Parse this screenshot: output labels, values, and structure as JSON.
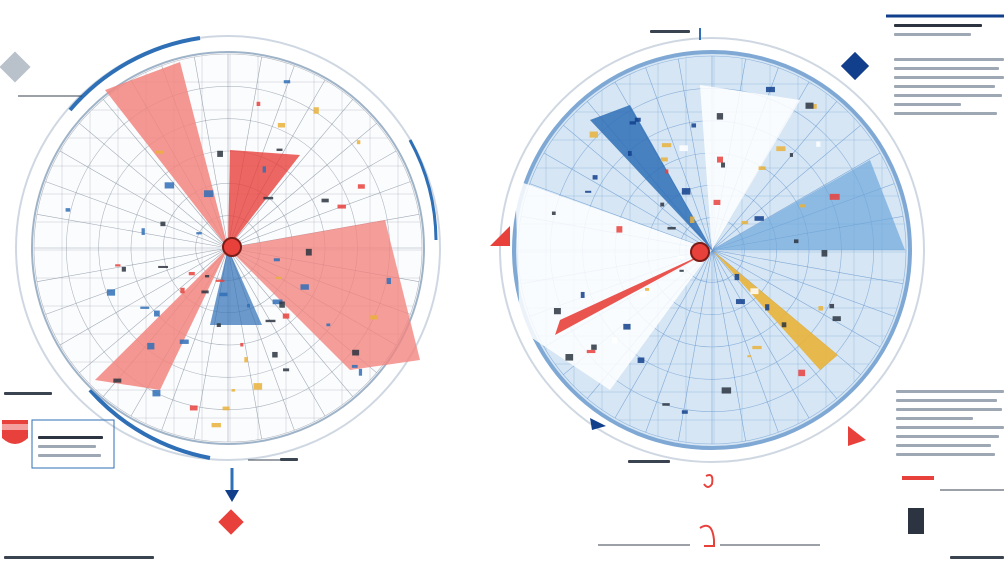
{
  "colors": {
    "red": "#e8413c",
    "red_light": "#f2857f",
    "blue": "#2f6fb6",
    "blue_light": "#a8cbe8",
    "blue_pale": "#d6e6f4",
    "navy": "#123f8c",
    "gold": "#e9b23a",
    "grid": "#8a96a4",
    "ring": "#5b8fcb"
  },
  "icons": {
    "left_top_marker": "grey-diamond-icon",
    "left_legend_marker": "red-shield-icon",
    "left_bottom_arrow": "arrow-down-icon",
    "left_bottom_marker": "red-diamond-icon",
    "right_top_marker": "navy-diamond-icon",
    "right_side_flag": "red-flag-icon",
    "right_bottom_marker": "red-pin-icon"
  },
  "left_disc": {
    "center_style": "red-hub",
    "sectors": [
      "red",
      "red",
      "red",
      "blue"
    ]
  },
  "right_disc": {
    "center_style": "red-hub",
    "sectors": [
      "blue",
      "blue",
      "gold",
      "red"
    ]
  }
}
